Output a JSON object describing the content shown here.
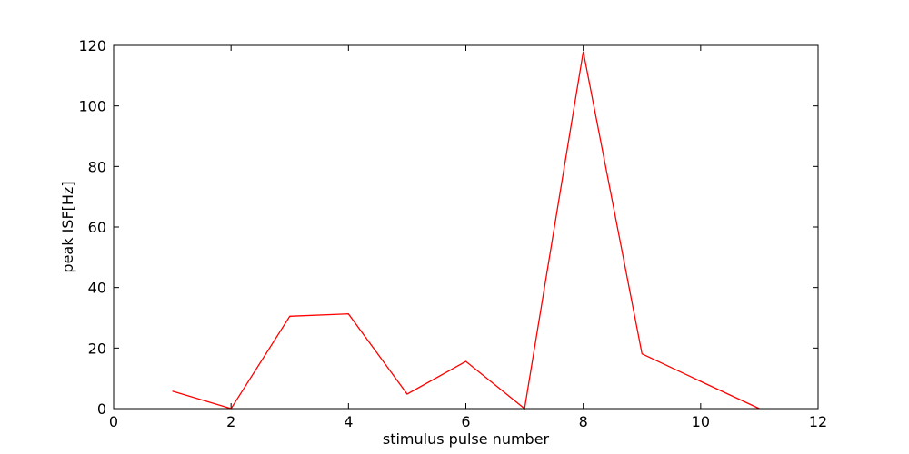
{
  "chart_data": {
    "type": "line",
    "title": "",
    "xlabel": "stimulus pulse number",
    "ylabel": "peak ISF[Hz]",
    "xlim": [
      0,
      12
    ],
    "ylim": [
      0,
      120
    ],
    "xticks": [
      0,
      2,
      4,
      6,
      8,
      10,
      12
    ],
    "yticks": [
      0,
      20,
      40,
      60,
      80,
      100,
      120
    ],
    "grid": false,
    "legend": "none",
    "series": [
      {
        "color": "#ff0000",
        "x": [
          1,
          2,
          3,
          4,
          5,
          6,
          7,
          8,
          9,
          10,
          11
        ],
        "y": [
          5.8,
          0,
          30.5,
          31.3,
          4.8,
          15.6,
          0,
          118,
          18.1,
          9.0,
          0
        ]
      }
    ]
  }
}
